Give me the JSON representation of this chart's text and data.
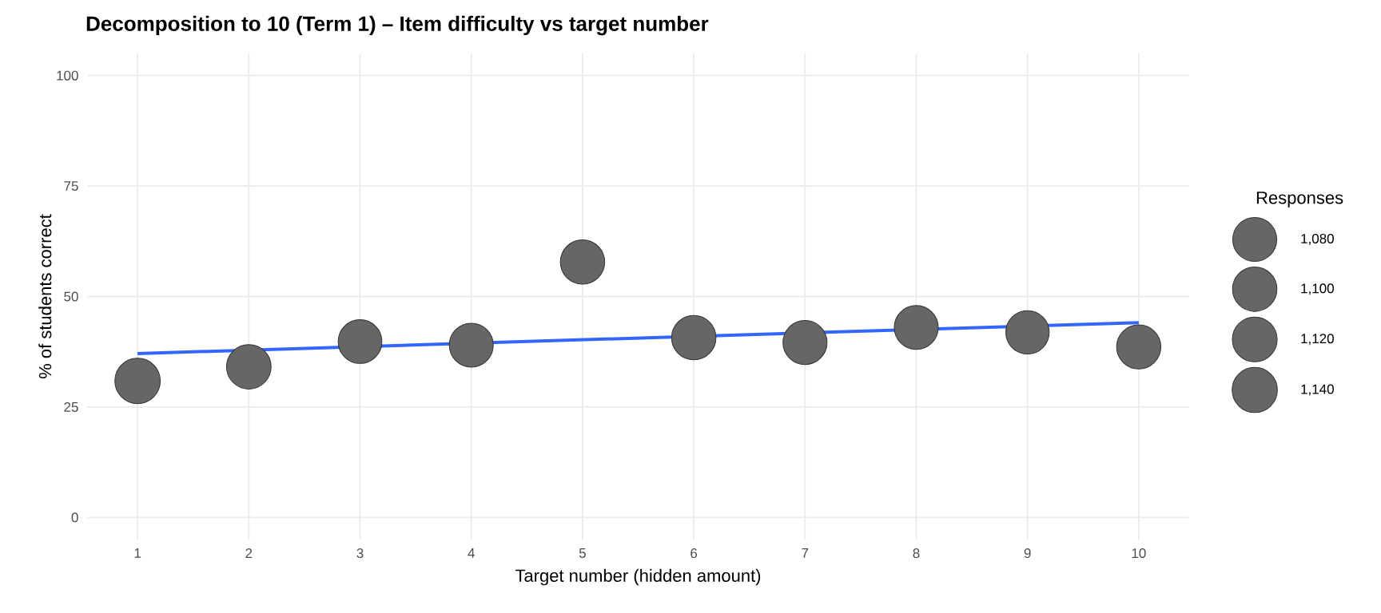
{
  "chart_data": {
    "type": "bubble",
    "title": "Decomposition to 10 (Term 1) – Item difficulty vs target number",
    "xlabel": "Target number (hidden amount)",
    "ylabel": "% of students correct",
    "legend_title": "Responses",
    "x": [
      1,
      2,
      3,
      4,
      5,
      6,
      7,
      8,
      9,
      10
    ],
    "series": [
      {
        "color": "#666666",
        "values": [
          30.9,
          34.1,
          39.8,
          39.0,
          57.8,
          40.7,
          39.6,
          43.0,
          41.9,
          38.6
        ],
        "sizes": [
          1148,
          1106,
          1066,
          1075,
          1094,
          1099,
          1084,
          1077,
          1050,
          1090
        ]
      },
      {
        "type": "line",
        "color": "#3366ff",
        "x": [
          1,
          10
        ],
        "values": [
          37.1,
          44.1
        ]
      }
    ],
    "size_legend": [
      {
        "value": 1080,
        "label": "1,080"
      },
      {
        "value": 1100,
        "label": "1,100"
      },
      {
        "value": 1120,
        "label": "1,120"
      },
      {
        "value": 1140,
        "label": "1,140"
      }
    ],
    "xlim": [
      0.55,
      10.45
    ],
    "ylim": [
      -5,
      105
    ],
    "xticks": [
      1,
      2,
      3,
      4,
      5,
      6,
      7,
      8,
      9,
      10
    ],
    "yticks": [
      0,
      25,
      50,
      75,
      100
    ],
    "grid": true
  }
}
